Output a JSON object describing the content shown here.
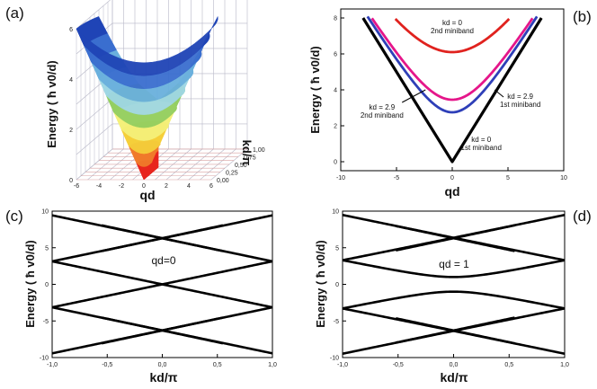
{
  "panels": {
    "a": {
      "letter": "(a)"
    },
    "b": {
      "letter": "(b)"
    },
    "c": {
      "letter": "(c)"
    },
    "d": {
      "letter": "(d)"
    }
  },
  "chart_data": [
    {
      "id": "a",
      "type": "surface3d",
      "xlabel": "qd",
      "ylabel": "kd/π",
      "zlabel": "Energy ( ħ v0/d)",
      "xticks": [
        "-6",
        "-4",
        "-2",
        "0",
        "2",
        "4",
        "6"
      ],
      "yticks": [
        "0,00",
        "0,25",
        "0,50",
        "0,75",
        "1,00"
      ],
      "zticks": [
        "0",
        "2",
        "4",
        "6"
      ],
      "xlim": [
        -6,
        6
      ],
      "ylim": [
        0,
        1
      ],
      "zlim": [
        0,
        6
      ],
      "band_colors": [
        "#e8241d",
        "#f07a2a",
        "#f5cf3a",
        "#f4f07a",
        "#94cf62",
        "#9fd7e4",
        "#6ab0dd",
        "#3a6ecf",
        "#1f44b6"
      ]
    },
    {
      "id": "b",
      "type": "line",
      "xlabel": "qd",
      "ylabel": "Energy ( ħ v0/d)",
      "xlim": [
        -10,
        10
      ],
      "ylim": [
        -0.5,
        8.5
      ],
      "xticks": [
        "-10",
        "-5",
        "0",
        "5",
        "10"
      ],
      "yticks": [
        "0",
        "2",
        "4",
        "6",
        "8"
      ],
      "series": [
        {
          "color": "#000000",
          "gap": 0,
          "order": 1,
          "qmax": 8.0
        },
        {
          "color": "#2e3fb8",
          "gap": 2.75,
          "order": 1,
          "qmax": 7.6
        },
        {
          "color": "#e5168a",
          "gap": 3.45,
          "order": 2,
          "qmax": 7.2
        },
        {
          "color": "#e0221e",
          "gap": 6.1,
          "order": 2,
          "qmax": 5.1
        }
      ],
      "annotations": [
        {
          "text": "kd = 0",
          "text2": "2nd miniband",
          "x": 0,
          "y": 7.6
        },
        {
          "text": "kd = 2.9",
          "text2": "1st miniband",
          "x": 6.1,
          "y": 3.5
        },
        {
          "text": "kd = 2.9",
          "text2": "2nd miniband",
          "x": -6.3,
          "y": 2.9
        },
        {
          "text": "kd = 0",
          "text2": "1st miniband",
          "x": 2.6,
          "y": 1.1
        }
      ]
    },
    {
      "id": "c",
      "type": "line",
      "title": "qd=0",
      "xlabel": "kd/π",
      "ylabel": "Energy ( ħ v0/d)",
      "xlim": [
        -1,
        1
      ],
      "ylim": [
        -10,
        10
      ],
      "xticks": [
        "-1,0",
        "-0,5",
        "0,0",
        "0,5",
        "1,0"
      ],
      "yticks": [
        "-10",
        "-5",
        "0",
        "5",
        "10"
      ],
      "qd": 0,
      "kmin": -0.55
    },
    {
      "id": "d",
      "type": "line",
      "title": "qd = 1",
      "xlabel": "kd/π",
      "ylabel": "Energy ( ħ v0/d)",
      "xlim": [
        -1,
        1
      ],
      "ylim": [
        -10,
        10
      ],
      "xticks": [
        "-1,0",
        "-0,5",
        "0,0",
        "0,5",
        "1,0"
      ],
      "yticks": [
        "-10",
        "-5",
        "0",
        "5",
        "10"
      ],
      "qd": 1,
      "kmin": -0.52
    }
  ]
}
